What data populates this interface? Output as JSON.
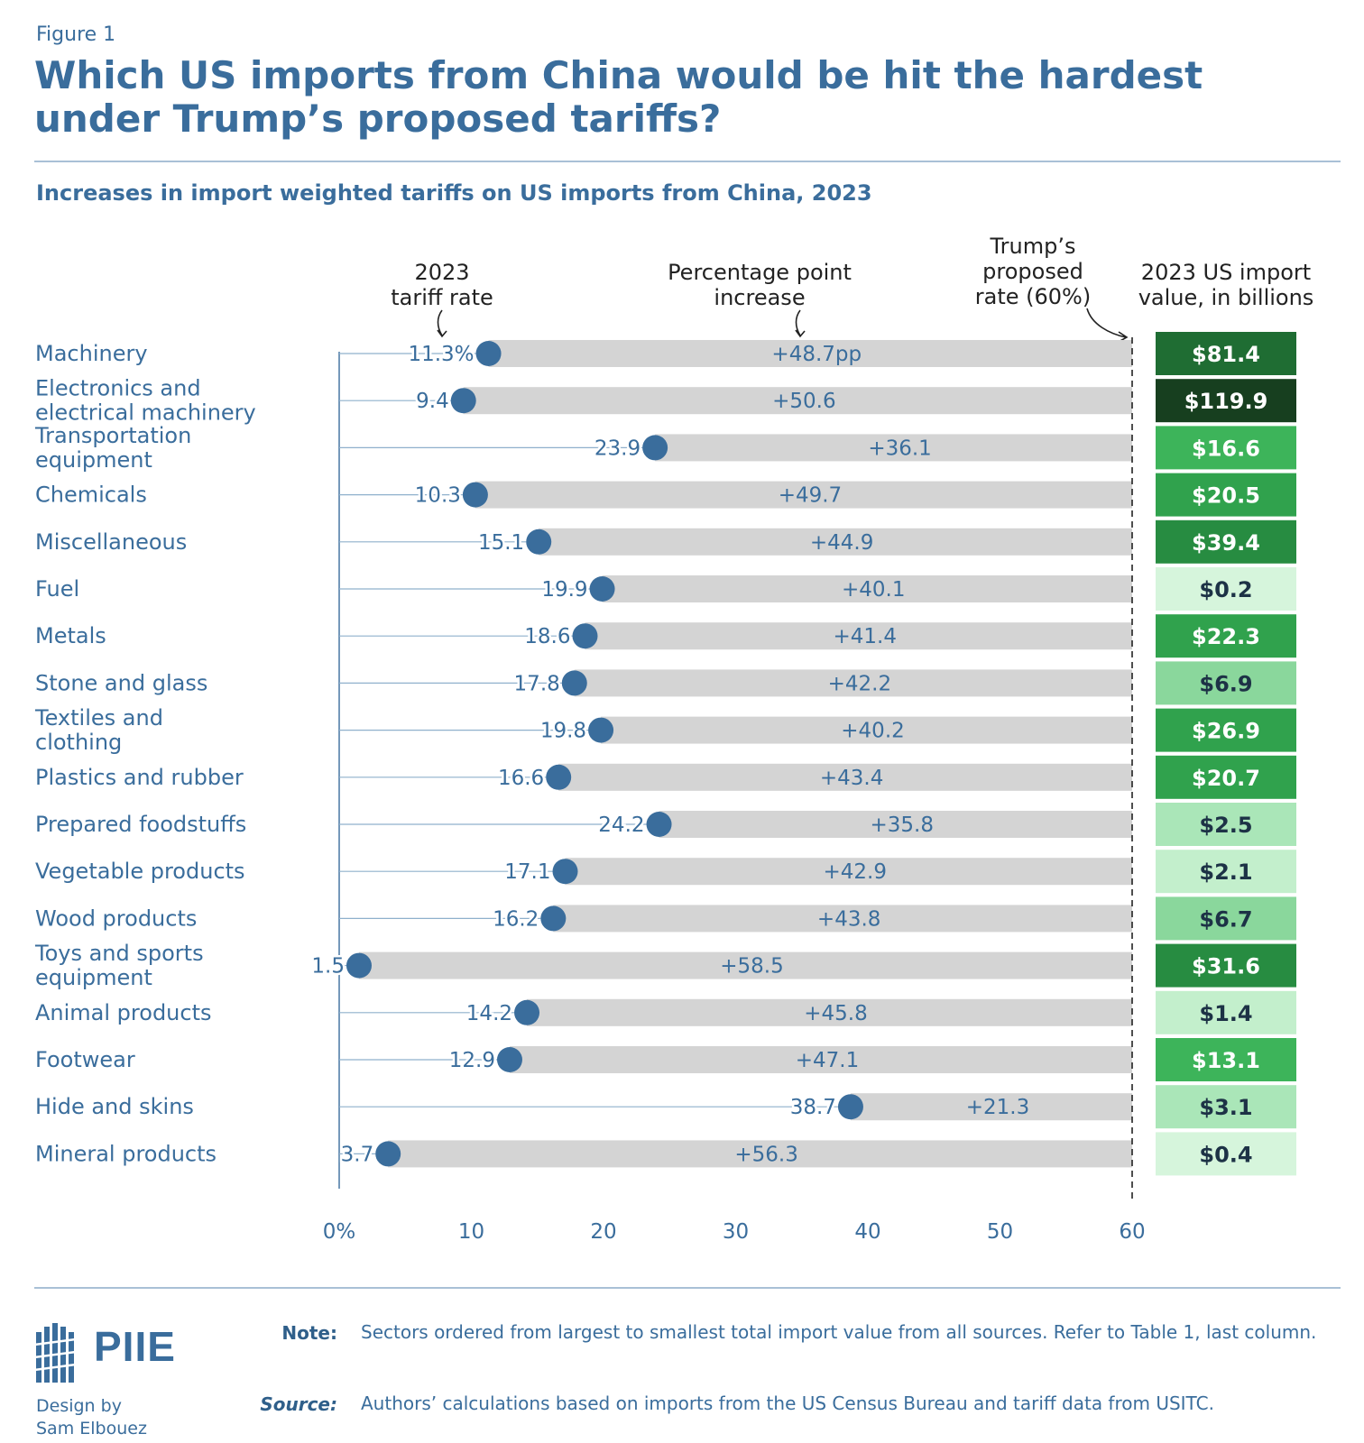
{
  "figure_label": "Figure 1",
  "title": "Which US imports from China would be hit the hardest under Trump’s proposed tariffs?",
  "subtitle": "Increases in import weighted tariffs on US imports from China, 2023",
  "chart_data": {
    "type": "bar",
    "subtype": "dumbbell-range",
    "column_headers": {
      "rate": [
        "2023",
        "tariff rate"
      ],
      "increase": [
        "Percentage point",
        "increase"
      ],
      "proposed": [
        "Trump’s",
        "proposed",
        "rate (60%)"
      ],
      "import_value": [
        "2023 US import",
        "value, in billions"
      ]
    },
    "categories": [
      [
        "Machinery"
      ],
      [
        "Electronics and",
        "electrical machinery"
      ],
      [
        "Transportation",
        "equipment"
      ],
      [
        "Chemicals"
      ],
      [
        "Miscellaneous"
      ],
      [
        "Fuel"
      ],
      [
        "Metals"
      ],
      [
        "Stone and glass"
      ],
      [
        "Textiles and",
        "clothing"
      ],
      [
        "Plastics and rubber"
      ],
      [
        "Prepared foodstuffs"
      ],
      [
        "Vegetable products"
      ],
      [
        "Wood products"
      ],
      [
        "Toys and sports",
        "equipment"
      ],
      [
        "Animal products"
      ],
      [
        "Footwear"
      ],
      [
        "Hide and skins"
      ],
      [
        "Mineral products"
      ]
    ],
    "tariff_2023": [
      11.3,
      9.4,
      23.9,
      10.3,
      15.1,
      19.9,
      18.6,
      17.8,
      19.8,
      16.6,
      24.2,
      17.1,
      16.2,
      1.5,
      14.2,
      12.9,
      38.7,
      3.7
    ],
    "tariff_2023_labels": [
      "11.3%",
      "9.4",
      "23.9",
      "10.3",
      "15.1",
      "19.9",
      "18.6",
      "17.8",
      "19.8",
      "16.6",
      "24.2",
      "17.1",
      "16.2",
      "1.5",
      "14.2",
      "12.9",
      "38.7",
      "3.7"
    ],
    "pp_increase_labels": [
      "+48.7pp",
      "+50.6",
      "+36.1",
      "+49.7",
      "+44.9",
      "+40.1",
      "+41.4",
      "+42.2",
      "+40.2",
      "+43.4",
      "+35.8",
      "+42.9",
      "+43.8",
      "+58.5",
      "+45.8",
      "+47.1",
      "+21.3",
      "+56.3"
    ],
    "proposed_rate": 60,
    "import_value_billions": [
      81.4,
      119.9,
      16.6,
      20.5,
      39.4,
      0.2,
      22.3,
      6.9,
      26.9,
      20.7,
      2.5,
      2.1,
      6.7,
      31.6,
      1.4,
      13.1,
      3.1,
      0.4
    ],
    "import_value_labels": [
      "$81.4",
      "$119.9",
      "$16.6",
      "$20.5",
      "$39.4",
      "$0.2",
      "$22.3",
      "$6.9",
      "$26.9",
      "$20.7",
      "$2.5",
      "$2.1",
      "$6.7",
      "$31.6",
      "$1.4",
      "$13.1",
      "$3.1",
      "$0.4"
    ],
    "x_ticks": [
      0,
      10,
      20,
      30,
      40,
      50,
      60
    ],
    "x_tick_labels": [
      "0%",
      "10",
      "20",
      "30",
      "40",
      "50",
      "60"
    ],
    "xlim": [
      0,
      60
    ],
    "colors": {
      "text": "#3a6d9c",
      "dot": "#3a6d9c",
      "bar": "#d4d4d4",
      "dark_text": "#1d3246",
      "value_scale": [
        "#d6f5dc",
        "#c3efcc",
        "#aae6b8",
        "#8ad79c",
        "#3db45a",
        "#30a24d",
        "#278c41",
        "#1f6d33",
        "#173f1f"
      ]
    }
  },
  "footer": {
    "logo_text": "PIIE",
    "design_credit": [
      "Design by",
      "Sam Elbouez"
    ],
    "note_label": "Note:",
    "note_text": "Sectors ordered from largest to smallest total import value from all sources. Refer to Table 1, last column.",
    "source_label": "Source:",
    "source_text": "Authors’ calculations based on imports from the US Census Bureau and tariff data from USITC."
  }
}
